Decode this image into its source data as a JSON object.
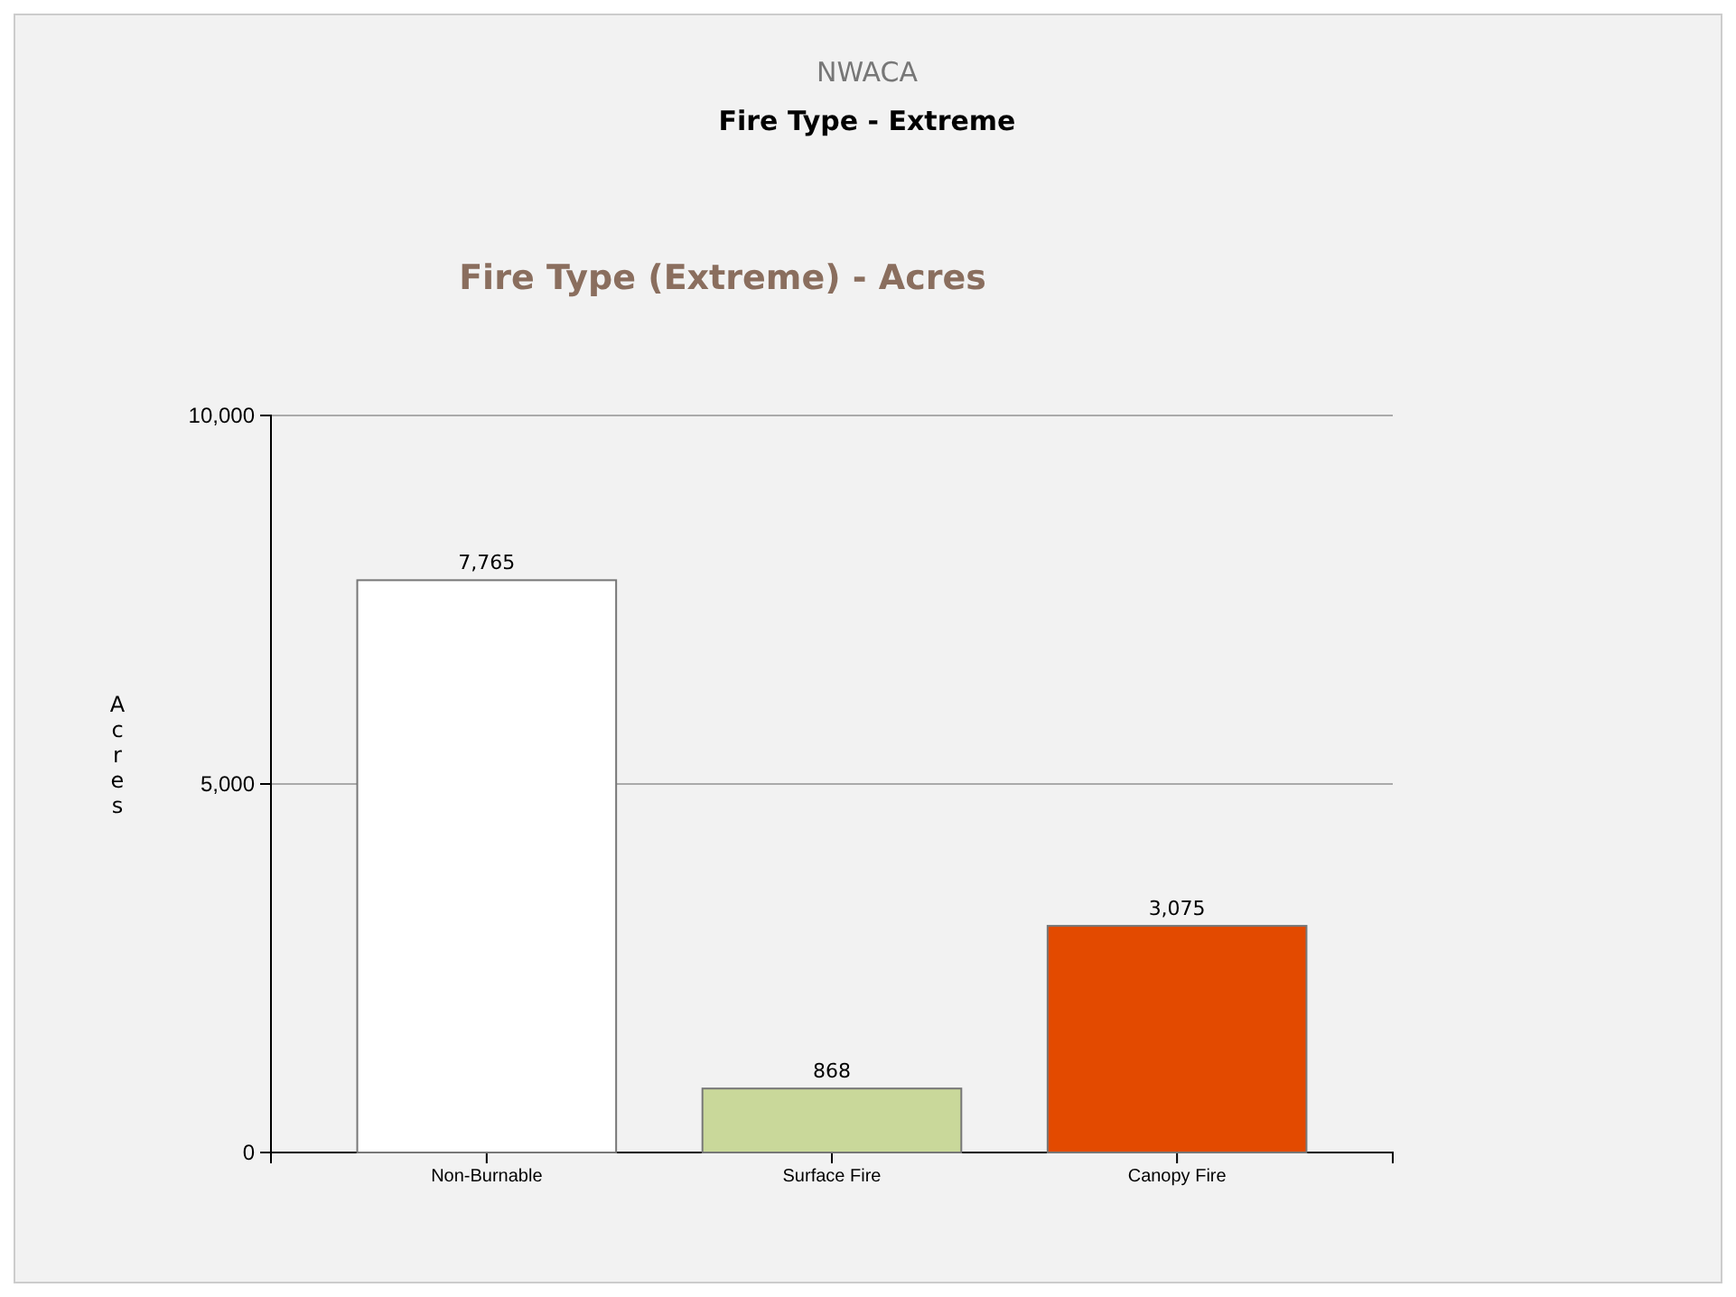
{
  "chart_data": {
    "type": "bar",
    "title": "NWACA",
    "subtitle": "Fire Type - Extreme",
    "ylabel": "Acres",
    "annotations": [
      "Fire Type (Extreme) - Acres"
    ],
    "categories": [
      "Non-Burnable",
      "Surface Fire",
      "Canopy Fire"
    ],
    "values": [
      7765,
      868,
      3075
    ],
    "value_labels": [
      "7,765",
      "868",
      "3,075"
    ],
    "colors": [
      "#ffffff",
      "#c9d89a",
      "#e34a00"
    ],
    "ylim": [
      0,
      10000
    ],
    "yticks": [
      {
        "value": 0,
        "label": "0"
      },
      {
        "value": 5000,
        "label": "5,000"
      },
      {
        "value": 10000,
        "label": "10,000"
      }
    ],
    "grid": "y"
  }
}
